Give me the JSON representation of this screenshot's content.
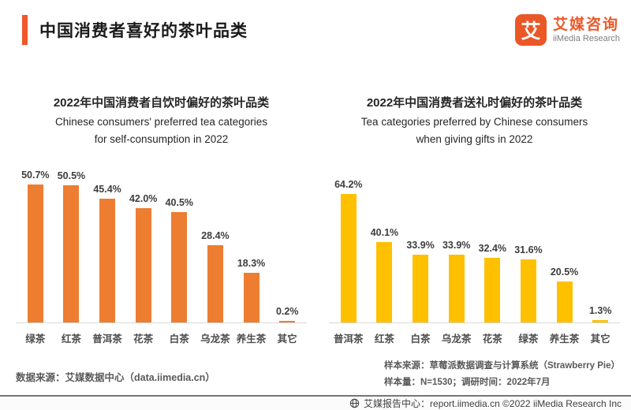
{
  "header": {
    "title": "中国消费者喜好的茶叶品类",
    "accent_color": "#F1572B",
    "logo": {
      "icon_text": "艾",
      "brand_cn": "艾媒咨询",
      "brand_en": "iiMedia Research",
      "brand_color": "#EA5828"
    }
  },
  "chart_data": [
    {
      "type": "bar",
      "title_cn": "2022年中国消费者自饮时偏好的茶叶品类",
      "title_en_line1": "Chinese consumers' preferred tea categories",
      "title_en_line2": "for self-consumption in 2022",
      "categories": [
        "绿茶",
        "红茶",
        "普洱茶",
        "花茶",
        "白茶",
        "乌龙茶",
        "养生茶",
        "其它"
      ],
      "values": [
        50.7,
        50.5,
        45.4,
        42.0,
        40.5,
        28.4,
        18.3,
        0.2
      ],
      "value_labels": [
        "50.7%",
        "50.5%",
        "45.4%",
        "42.0%",
        "40.5%",
        "28.4%",
        "18.3%",
        "0.2%"
      ],
      "bar_color": "#ED7D31",
      "ylim": [
        0,
        55
      ],
      "grid": false,
      "legend": "none",
      "source": "数据来源：艾媒数据中心（data.iimedia.cn）"
    },
    {
      "type": "bar",
      "title_cn": "2022年中国消费者送礼时偏好的茶叶品类",
      "title_en_line1": "Tea categories preferred by Chinese consumers",
      "title_en_line2": "when giving gifts in 2022",
      "categories": [
        "普洱茶",
        "红茶",
        "白茶",
        "乌龙茶",
        "花茶",
        "绿茶",
        "养生茶",
        "其它"
      ],
      "values": [
        64.2,
        40.1,
        33.9,
        33.9,
        32.4,
        31.6,
        20.5,
        1.3
      ],
      "value_labels": [
        "64.2%",
        "40.1%",
        "33.9%",
        "33.9%",
        "32.4%",
        "31.6%",
        "20.5%",
        "1.3%"
      ],
      "bar_color": "#FFC000",
      "ylim": [
        0,
        75
      ],
      "grid": false,
      "legend": "none",
      "source_line1": "样本来源：草莓派数据调查与计算系统（Strawberry Pie）",
      "source_line2": "样本量：N=1530；调研时间：2022年7月"
    }
  ],
  "footer": {
    "icon": "globe-icon",
    "text": "艾媒报告中心：report.iimedia.cn   ©2022   iiMedia Research  Inc"
  }
}
